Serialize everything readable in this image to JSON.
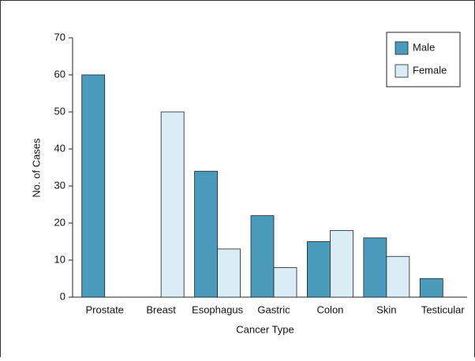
{
  "chart_data": {
    "type": "bar",
    "x_label": "Cancer Type",
    "y_label": "No. of Cases",
    "categories": [
      "Prostate",
      "Breast",
      "Esophagus",
      "Gastric",
      "Colon",
      "Skin",
      "Testicular"
    ],
    "series": [
      {
        "name": "Male",
        "color": "#4a9bbb",
        "values": [
          60,
          0,
          34,
          22,
          15,
          16,
          5
        ]
      },
      {
        "name": "Female",
        "color": "#daecf6",
        "values": [
          0,
          50,
          13,
          8,
          18,
          11,
          0
        ]
      }
    ],
    "ylim": [
      0,
      70
    ],
    "yticks": [
      0,
      10,
      20,
      30,
      40,
      50,
      60,
      70
    ],
    "legend": "upper right"
  }
}
